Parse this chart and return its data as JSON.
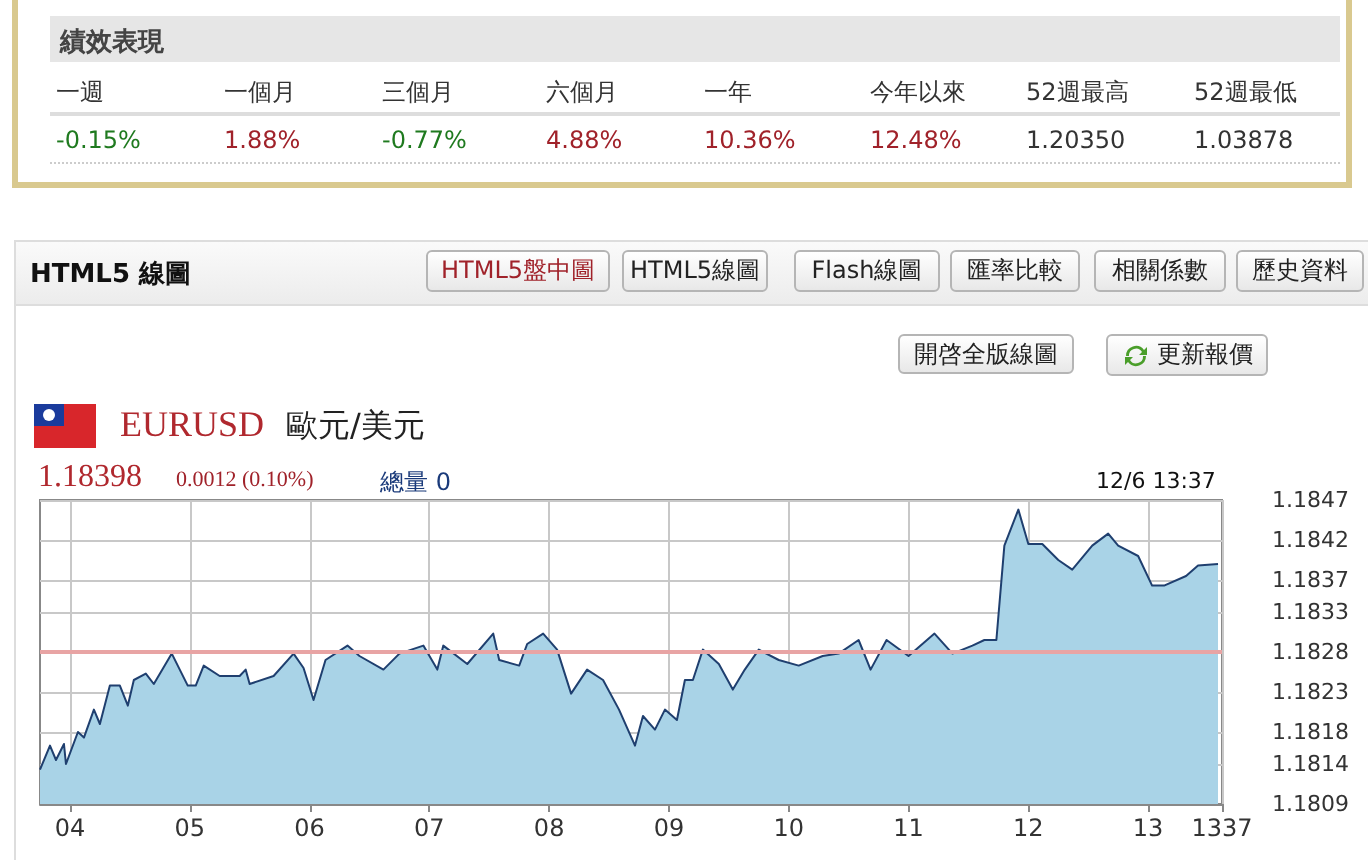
{
  "chart_data": {
    "type": "area",
    "title": "EURUSD",
    "subtitle": "歐元/美元",
    "annotations": [
      "績效表現",
      "一週",
      "一個月",
      "三個月",
      "六個月",
      "一年",
      "今年以來",
      "52週最高",
      "52週最低",
      "-0.15%",
      "1.88%",
      "-0.77%",
      "4.88%",
      "10.36%",
      "12.48%",
      "1.20350",
      "1.03878",
      "HTML5 線圖",
      "HTML5盤中圖",
      "HTML5線圖",
      "Flash線圖",
      "匯率比較",
      "相關係數",
      "歷史資料",
      "開啓全版線圖",
      "更新報價",
      "1.18398",
      "0.0012 (0.10%)",
      "總量 0",
      "12/6 13:37"
    ],
    "x": [
      "--12-06T03:45",
      "--12-06T03:50",
      "--12-06T03:53",
      "--12-06T03:57",
      "--12-06T03:58",
      "--12-06T04:04",
      "--12-06T04:07",
      "--12-06T04:12",
      "--12-06T04:15",
      "--12-06T04:20",
      "--12-06T04:25",
      "--12-06T04:29",
      "--12-06T04:32",
      "--12-06T04:38",
      "--12-06T04:42",
      "--12-06T04:51",
      "--12-06T04:59",
      "--12-06T05:03",
      "--12-06T05:07",
      "--12-06T05:15",
      "--12-06T05:25",
      "--12-06T05:28",
      "--12-06T05:30",
      "--12-06T05:42",
      "--12-06T05:52",
      "--12-06T05:57",
      "--12-06T06:02",
      "--12-06T06:08",
      "--12-06T06:19",
      "--12-06T06:25",
      "--12-06T06:37",
      "--12-06T06:45",
      "--12-06T06:57",
      "--12-06T07:04",
      "--12-06T07:07",
      "--12-06T07:19",
      "--12-06T07:32",
      "--12-06T07:35",
      "--12-06T07:45",
      "--12-06T07:49",
      "--12-06T07:57",
      "--12-06T08:04",
      "--12-06T08:11",
      "--12-06T08:19",
      "--12-06T08:27",
      "--12-06T08:35",
      "--12-06T08:43",
      "--12-06T08:47",
      "--12-06T08:53",
      "--12-06T08:58",
      "--12-06T09:04",
      "--12-06T09:08",
      "--12-06T09:12",
      "--12-06T09:17",
      "--12-06T09:25",
      "--12-06T09:32",
      "--12-06T09:38",
      "--12-06T09:45",
      "--12-06T09:55",
      "--12-06T10:05",
      "--12-06T10:17",
      "--12-06T10:25",
      "--12-06T10:35",
      "--12-06T10:41",
      "--12-06T10:49",
      "--12-06T11:00",
      "--12-06T11:13",
      "--12-06T11:22",
      "--12-06T11:32",
      "--12-06T11:38",
      "--12-06T11:44",
      "--12-06T11:48",
      "--12-06T11:55",
      "--12-06T12:00",
      "--12-06T12:07",
      "--12-06T12:15",
      "--12-06T12:22",
      "--12-06T12:32",
      "--12-06T12:40",
      "--12-06T12:45",
      "--12-06T12:55",
      "--12-06T13:02",
      "--12-06T13:08",
      "--12-06T13:19",
      "--12-06T13:25",
      "--12-06T13:35"
    ],
    "series": [
      {
        "color": "#1f3f6f",
        "values": [
          1.18133,
          1.18163,
          1.18145,
          1.18165,
          1.1814,
          1.1818,
          1.18173,
          1.18208,
          1.1819,
          1.18238,
          1.18238,
          1.18213,
          1.18245,
          1.18253,
          1.1824,
          1.18278,
          1.18238,
          1.18238,
          1.18263,
          1.1825,
          1.1825,
          1.18258,
          1.1824,
          1.1825,
          1.18278,
          1.1826,
          1.1822,
          1.1827,
          1.18288,
          1.18275,
          1.18258,
          1.18278,
          1.18288,
          1.18258,
          1.18288,
          1.18265,
          1.18303,
          1.1827,
          1.18263,
          1.1829,
          1.18303,
          1.18283,
          1.18228,
          1.18258,
          1.18245,
          1.18208,
          1.18163,
          1.182,
          1.18183,
          1.18208,
          1.18195,
          1.18245,
          1.18245,
          1.18283,
          1.18265,
          1.18233,
          1.18258,
          1.18283,
          1.1827,
          1.18263,
          1.18275,
          1.18278,
          1.18295,
          1.18258,
          1.18295,
          1.18275,
          1.18303,
          1.18278,
          1.18288,
          1.18295,
          1.18295,
          1.18413,
          1.18458,
          1.18415,
          1.18415,
          1.18395,
          1.18383,
          1.18413,
          1.18428,
          1.18413,
          1.184,
          1.18363,
          1.18363,
          1.18375,
          1.18388,
          1.1839
        ]
      }
    ],
    "xlim": [
      "--12-06T03:45",
      "--12-06T13:37"
    ],
    "xticks": [
      {
        "value": "--12-06T04:00",
        "label": "04"
      },
      {
        "value": "--12-06T05:00",
        "label": "05"
      },
      {
        "value": "--12-06T06:00",
        "label": "06"
      },
      {
        "value": "--12-06T07:00",
        "label": "07"
      },
      {
        "value": "--12-06T08:00",
        "label": "08"
      },
      {
        "value": "--12-06T09:00",
        "label": "09"
      },
      {
        "value": "--12-06T10:00",
        "label": "10"
      },
      {
        "value": "--12-06T11:00",
        "label": "11"
      },
      {
        "value": "--12-06T12:00",
        "label": "12"
      },
      {
        "value": "--12-06T13:00",
        "label": "13"
      },
      {
        "value": "--12-06T13:37",
        "label": "1337"
      }
    ],
    "ylim": [
      1.1809,
      1.1847
    ],
    "yticks": [
      1.1809,
      1.1814,
      1.1818,
      1.1823,
      1.1828,
      1.1833,
      1.1837,
      1.1842,
      1.1847
    ],
    "grid": true,
    "ref_lines": [
      {
        "axis": "y",
        "value": 1.1828,
        "color": "#e8a4a4"
      }
    ]
  }
}
